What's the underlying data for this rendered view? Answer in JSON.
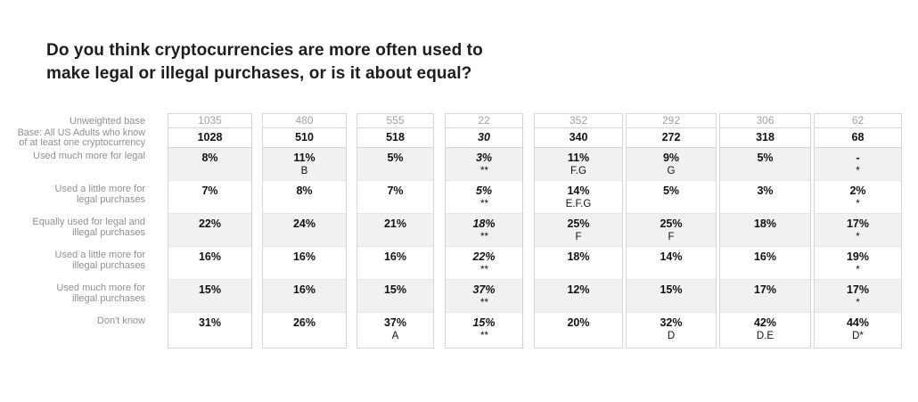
{
  "title": "Do you think cryptocurrencies are more often used to make legal or illegal purchases, or is it about equal?",
  "title_lines": {
    "l1": "Do you think cryptocurrencies are more often used to",
    "l2": "make legal or illegal purchases, or is it about equal?"
  },
  "colors": {
    "row_shade": "#f1f1f1",
    "box_border": "#d6d6d6",
    "label_gray": "#8f8f8f",
    "unweighted_gray": "#a2a2a2",
    "value_black": "#111111"
  },
  "chart_data": {
    "type": "table",
    "title": "Do you think cryptocurrencies are more often used to make legal or illegal purchases, or is it about equal?",
    "row_labels": [
      "Unweighted base",
      "Base: All US Adults who know of at least one cryptocurrency",
      "Used much more for legal",
      "Used a little more for legal purchases",
      "Equally used for legal and illegal purchases",
      "Used a little more for illegal purchases",
      "Used much more for illegal purchases",
      "Don't know"
    ],
    "label_lines": [
      {
        "l1": "Unweighted base",
        "l2": ""
      },
      {
        "l1": "Base: All US Adults who know",
        "l2": "of at least one cryptocurrency"
      },
      {
        "l1": "Used much more for legal",
        "l2": ""
      },
      {
        "l1": "Used a little more for",
        "l2": "legal purchases"
      },
      {
        "l1": "Equally used for legal and",
        "l2": "illegal purchases"
      },
      {
        "l1": "Used a little more for",
        "l2": "illegal purchases"
      },
      {
        "l1": "Used much more for",
        "l2": "illegal purchases"
      },
      {
        "l1": "Don't know",
        "l2": ""
      }
    ],
    "columns": [
      {
        "unweighted_base": "1035",
        "base": "1028",
        "small_base": false,
        "cells": [
          {
            "v": "8%",
            "s": ""
          },
          {
            "v": "7%",
            "s": ""
          },
          {
            "v": "22%",
            "s": ""
          },
          {
            "v": "16%",
            "s": ""
          },
          {
            "v": "15%",
            "s": ""
          },
          {
            "v": "31%",
            "s": ""
          }
        ]
      },
      {
        "unweighted_base": "480",
        "base": "510",
        "small_base": false,
        "cells": [
          {
            "v": "11%",
            "s": "B"
          },
          {
            "v": "8%",
            "s": ""
          },
          {
            "v": "24%",
            "s": ""
          },
          {
            "v": "16%",
            "s": ""
          },
          {
            "v": "16%",
            "s": ""
          },
          {
            "v": "26%",
            "s": ""
          }
        ]
      },
      {
        "unweighted_base": "555",
        "base": "518",
        "small_base": false,
        "cells": [
          {
            "v": "5%",
            "s": ""
          },
          {
            "v": "7%",
            "s": ""
          },
          {
            "v": "21%",
            "s": ""
          },
          {
            "v": "16%",
            "s": ""
          },
          {
            "v": "15%",
            "s": ""
          },
          {
            "v": "37%",
            "s": "A"
          }
        ]
      },
      {
        "unweighted_base": "22",
        "base": "30",
        "small_base": true,
        "cells": [
          {
            "v": "3%",
            "s": "**"
          },
          {
            "v": "5%",
            "s": "**"
          },
          {
            "v": "18%",
            "s": "**"
          },
          {
            "v": "22%",
            "s": "**"
          },
          {
            "v": "37%",
            "s": "**"
          },
          {
            "v": "15%",
            "s": "**"
          }
        ]
      },
      {
        "unweighted_base": "352",
        "base": "340",
        "small_base": false,
        "cells": [
          {
            "v": "11%",
            "s": "F.G"
          },
          {
            "v": "14%",
            "s": "E.F.G"
          },
          {
            "v": "25%",
            "s": "F"
          },
          {
            "v": "18%",
            "s": ""
          },
          {
            "v": "12%",
            "s": ""
          },
          {
            "v": "20%",
            "s": ""
          }
        ]
      },
      {
        "unweighted_base": "292",
        "base": "272",
        "small_base": false,
        "cells": [
          {
            "v": "9%",
            "s": "G"
          },
          {
            "v": "5%",
            "s": ""
          },
          {
            "v": "25%",
            "s": "F"
          },
          {
            "v": "14%",
            "s": ""
          },
          {
            "v": "15%",
            "s": ""
          },
          {
            "v": "32%",
            "s": "D"
          }
        ]
      },
      {
        "unweighted_base": "306",
        "base": "318",
        "small_base": false,
        "cells": [
          {
            "v": "5%",
            "s": ""
          },
          {
            "v": "3%",
            "s": ""
          },
          {
            "v": "18%",
            "s": ""
          },
          {
            "v": "16%",
            "s": ""
          },
          {
            "v": "17%",
            "s": ""
          },
          {
            "v": "42%",
            "s": "D.E"
          }
        ]
      },
      {
        "unweighted_base": "62",
        "base": "68",
        "small_base": false,
        "cells": [
          {
            "v": "-",
            "s": "*"
          },
          {
            "v": "2%",
            "s": "*"
          },
          {
            "v": "17%",
            "s": "*"
          },
          {
            "v": "19%",
            "s": "*"
          },
          {
            "v": "17%",
            "s": "*"
          },
          {
            "v": "44%",
            "s": "D*"
          }
        ]
      }
    ]
  }
}
